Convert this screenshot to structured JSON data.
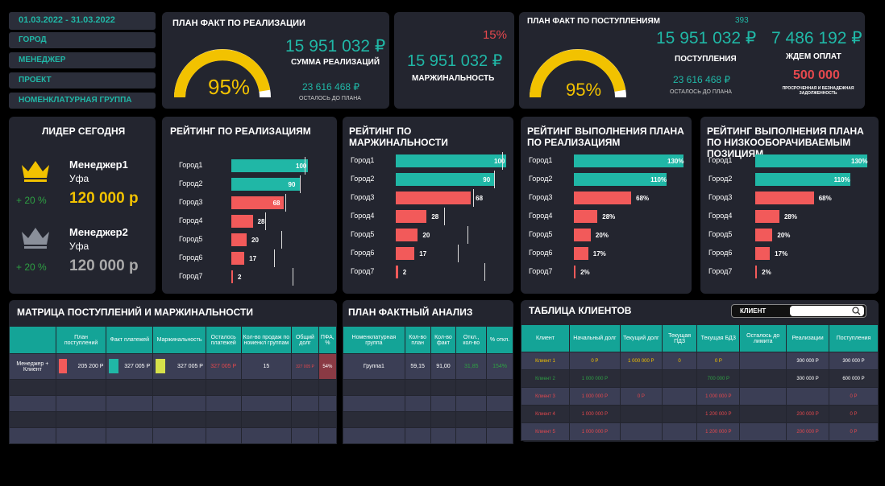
{
  "filters": {
    "date": "01.03.2022 - 31.03.2022",
    "city": "ГОРОД",
    "manager": "МЕНЕДЖЕР",
    "project": "ПРОЕКТ",
    "group": "НОМЕНКЛАТУРНАЯ ГРУППА"
  },
  "sales": {
    "title": "ПЛАН ФАКТ ПО РЕАЛИЗАЦИИ",
    "gauge_pct": "95%",
    "gauge_value": 0.95,
    "amount": "15 951 032 ₽",
    "amount_label": "СУММА РЕАЛИЗАЦИЙ",
    "remaining": "23 616 468 ₽",
    "remaining_label": "ОСТАЛОСЬ ДО ПЛАНА"
  },
  "margin": {
    "pct": "15%",
    "amount": "15 951 032 ₽",
    "label": "МАРЖИНАЛЬНОСТЬ"
  },
  "receipts": {
    "title": "ПЛАН ФАКТ ПО ПОСТУПЛЕНИЯМ",
    "top_num": "393",
    "gauge_pct": "95%",
    "gauge_value": 0.95,
    "amount": "15 951 032 ₽",
    "amount_label": "ПОСТУПЛЕНИЯ",
    "remaining": "23 616 468 ₽",
    "remaining_label": "ОСТАЛОСЬ ДО ПЛАНА",
    "waiting": "7 486 192 ₽",
    "waiting_label": "ЖДЕМ ОПЛАТ",
    "overdue": "500 000",
    "overdue_label": "ПРОСРОЧЕННАЯ И БЕЗНАДЕЖНАЯ ЗАДОЛЖЕННОСТЬ"
  },
  "leader": {
    "title": "ЛИДЕР СЕГОДНЯ",
    "first": {
      "name": "Менеджер1",
      "city": "Уфа",
      "delta": "+ 20 %",
      "value": "120 000 р"
    },
    "second": {
      "name": "Менеджер2",
      "city": "Уфа",
      "delta": "+ 20 %",
      "value": "120 000 р"
    }
  },
  "ratings": [
    {
      "title": "РЕЙТИНГ ПО РЕАЛИЗАЦИЯМ",
      "rows": [
        {
          "c": "Город1",
          "v": 100,
          "l": "100"
        },
        {
          "c": "Город2",
          "v": 90,
          "l": "90"
        },
        {
          "c": "Город3",
          "v": 68,
          "l": "68"
        },
        {
          "c": "Город4",
          "v": 28,
          "l": "28"
        },
        {
          "c": "Город5",
          "v": 20,
          "l": "20"
        },
        {
          "c": "Город6",
          "v": 17,
          "l": "17"
        },
        {
          "c": "Город7",
          "v": 2,
          "l": "2"
        }
      ]
    },
    {
      "title": "РЕЙТИНГ ПО МАРЖИНАЛЬНОСТИ",
      "rows": [
        {
          "c": "Город1",
          "v": 100,
          "l": "100"
        },
        {
          "c": "Город2",
          "v": 90,
          "l": "90"
        },
        {
          "c": "Город3",
          "v": 68,
          "l": "68"
        },
        {
          "c": "Город4",
          "v": 28,
          "l": "28"
        },
        {
          "c": "Город5",
          "v": 20,
          "l": "20"
        },
        {
          "c": "Город6",
          "v": 17,
          "l": "17"
        },
        {
          "c": "Город7",
          "v": 2,
          "l": "2"
        }
      ]
    },
    {
      "title": "РЕЙТИНГ ВЫПОЛНЕНИЯ ПЛАНА ПО  РЕАЛИЗАЦИЯМ",
      "rows": [
        {
          "c": "Город1",
          "v": 130,
          "l": "130%"
        },
        {
          "c": "Город2",
          "v": 110,
          "l": "110%"
        },
        {
          "c": "Город3",
          "v": 68,
          "l": "68%"
        },
        {
          "c": "Город4",
          "v": 28,
          "l": "28%"
        },
        {
          "c": "Город5",
          "v": 20,
          "l": "20%"
        },
        {
          "c": "Город6",
          "v": 17,
          "l": "17%"
        },
        {
          "c": "Город7",
          "v": 2,
          "l": "2%"
        }
      ]
    },
    {
      "title": "РЕЙТИНГ ВЫПОЛНЕНИЯ ПЛАНА ПО НИЗКООБОРАЧИВАЕМЫМ ПОЗИЦИЯМ",
      "rows": [
        {
          "c": "Город1",
          "v": 130,
          "l": "130%"
        },
        {
          "c": "Город2",
          "v": 110,
          "l": "110%"
        },
        {
          "c": "Город3",
          "v": 68,
          "l": "68%"
        },
        {
          "c": "Город4",
          "v": 28,
          "l": "28%"
        },
        {
          "c": "Город5",
          "v": 20,
          "l": "20%"
        },
        {
          "c": "Город6",
          "v": 17,
          "l": "17%"
        },
        {
          "c": "Город7",
          "v": 2,
          "l": "2%"
        }
      ]
    }
  ],
  "matrix": {
    "title": "МАТРИЦА ПОСТУПЛЕНИЙ И МАРЖИНАЛЬНОСТИ",
    "headers": [
      "",
      "План поступлений",
      "Факт платежей",
      "Маржинальность",
      "Осталось платежей",
      "Кол-во продаж по номенкл группам",
      "Общий долг",
      "ПФА, %"
    ],
    "row": [
      "Менеджер + Клиент",
      "205 200 Р",
      "327 005 Р",
      "327 005 Р",
      "327 005 Р",
      "15",
      "327 005 Р",
      "54%"
    ]
  },
  "pfa": {
    "title": "ПЛАН ФАКТНЫЙ АНАЛИЗ",
    "headers": [
      "Номенклатурная группа",
      "Кол-во план",
      "Кол-во факт",
      "Откл., кол-во",
      "% откл."
    ],
    "row": [
      "Группа1",
      "59,15",
      "91,00",
      "31,85",
      "154%"
    ]
  },
  "clients": {
    "title": "ТАБЛИЦА КЛИЕНТОВ",
    "search_label": "КЛИЕНТ",
    "headers": [
      "Клиент",
      "Начальный долг",
      "Текущий долг",
      "Текущая ПДЗ",
      "Текущая БДЗ",
      "Осталось до лимита",
      "Реализации",
      "Поступления"
    ],
    "rows": [
      [
        "Клиент 1",
        "0 Р",
        "1 000 000 Р",
        "0",
        "0 Р",
        "",
        "300 000 Р",
        "300 000 Р"
      ],
      [
        "Клиент 2",
        "1 000 000 Р",
        "",
        "",
        "700 000 Р",
        "",
        "300 000 Р",
        "600 000 Р"
      ],
      [
        "Клиент 3",
        "1 000 000 Р",
        "0 Р",
        "",
        "1 000 000 Р",
        "",
        "",
        "0 Р"
      ],
      [
        "Клиент 4",
        "1 000 000 Р",
        "",
        "",
        "1 200 000 Р",
        "",
        "200 000 Р",
        "0 Р"
      ],
      [
        "Клиент 5",
        "1 000 000 Р",
        "",
        "",
        "1 200 000 Р",
        "",
        "200 000 Р",
        "0 Р"
      ]
    ],
    "row_colors": [
      "#f2c200",
      "#2ea043",
      "#e5484d",
      "#e5484d",
      "#e5484d"
    ]
  },
  "colors": {
    "teal": "#20b7a6",
    "red": "#f25a5a",
    "yellow": "#f2c200"
  }
}
